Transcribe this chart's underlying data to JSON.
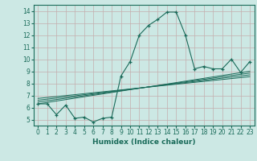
{
  "xlabel": "Humidex (Indice chaleur)",
  "background_color": "#cce8e4",
  "grid_color": "#c4aeae",
  "line_color": "#1a6b5a",
  "xlim": [
    -0.5,
    23.5
  ],
  "ylim": [
    4.5,
    14.5
  ],
  "xticks": [
    0,
    1,
    2,
    3,
    4,
    5,
    6,
    7,
    8,
    9,
    10,
    11,
    12,
    13,
    14,
    15,
    16,
    17,
    18,
    19,
    20,
    21,
    22,
    23
  ],
  "yticks": [
    5,
    6,
    7,
    8,
    9,
    10,
    11,
    12,
    13,
    14
  ],
  "main_x": [
    0,
    1,
    2,
    3,
    4,
    5,
    6,
    7,
    8,
    9,
    10,
    11,
    12,
    13,
    14,
    15,
    16,
    17,
    18,
    19,
    20,
    21,
    22,
    23
  ],
  "main_y": [
    6.3,
    6.3,
    5.4,
    6.2,
    5.1,
    5.2,
    4.8,
    5.1,
    5.2,
    8.6,
    9.8,
    12.0,
    12.8,
    13.3,
    13.9,
    13.9,
    12.0,
    9.2,
    9.4,
    9.2,
    9.2,
    10.0,
    8.9,
    9.8
  ],
  "trend1_x": [
    0,
    23
  ],
  "trend1_y": [
    6.3,
    9.0
  ],
  "trend2_x": [
    0,
    23
  ],
  "trend2_y": [
    6.45,
    8.85
  ],
  "trend3_x": [
    0,
    23
  ],
  "trend3_y": [
    6.6,
    8.7
  ],
  "trend4_x": [
    0,
    23
  ],
  "trend4_y": [
    6.75,
    8.55
  ]
}
